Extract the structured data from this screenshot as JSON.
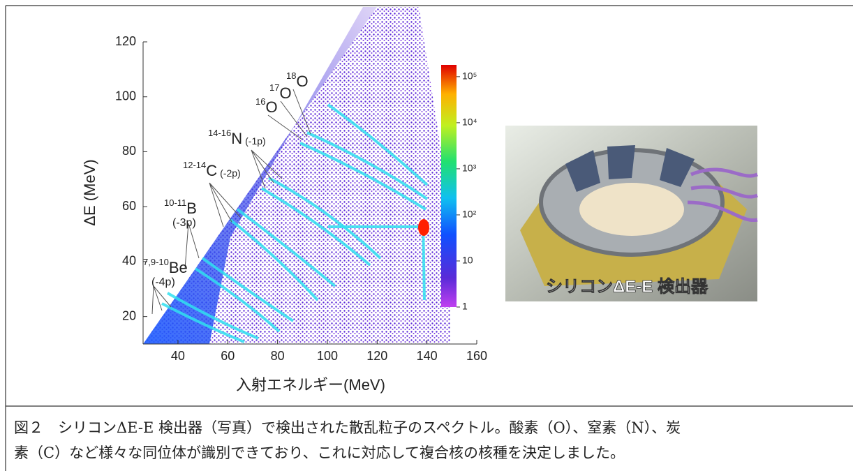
{
  "figure": {
    "chart_data": {
      "type": "heatmap",
      "x_label": "入射エネルギー(MeV)",
      "y_label": "ΔE (MeV)",
      "xlim": [
        26,
        160
      ],
      "xticks": [
        40,
        60,
        80,
        100,
        120,
        140,
        160
      ],
      "ylim": [
        10,
        120
      ],
      "yticks": [
        20,
        40,
        60,
        80,
        100,
        120
      ],
      "colorbar": {
        "scale": "log",
        "lim": [
          1,
          180000
        ],
        "ticks": [
          1,
          10,
          {
            "value": 100,
            "label": "10²"
          },
          {
            "value": 1000,
            "label": "10³"
          },
          {
            "value": 10000,
            "label": "10⁴"
          },
          {
            "value": 100000,
            "label": "10⁵"
          }
        ]
      },
      "annotations": [
        {
          "sup": "18",
          "symbol": "O"
        },
        {
          "sup": "17",
          "symbol": "O"
        },
        {
          "sup": "16",
          "symbol": "O"
        },
        {
          "sup": "14-16",
          "symbol": "N",
          "note": "(-1p)"
        },
        {
          "sup": "12-14",
          "symbol": "C",
          "note": "(-2p)"
        },
        {
          "sup": "10-11",
          "symbol": "B",
          "note": "(-3p)"
        },
        {
          "sup": "7,9-10",
          "symbol": "Be",
          "note": "(-4p)"
        }
      ]
    },
    "photo": {
      "caption": "シリコンΔE-E 検出器"
    },
    "caption_lines": [
      "図２　シリコンΔE-E 検出器（写真）で検出された散乱粒子のスペクトル。酸素（O）、窒素（N）、炭",
      "素（C）など様々な同位体が識別できており、これに対応して複合核の核種を決定しました。"
    ]
  }
}
